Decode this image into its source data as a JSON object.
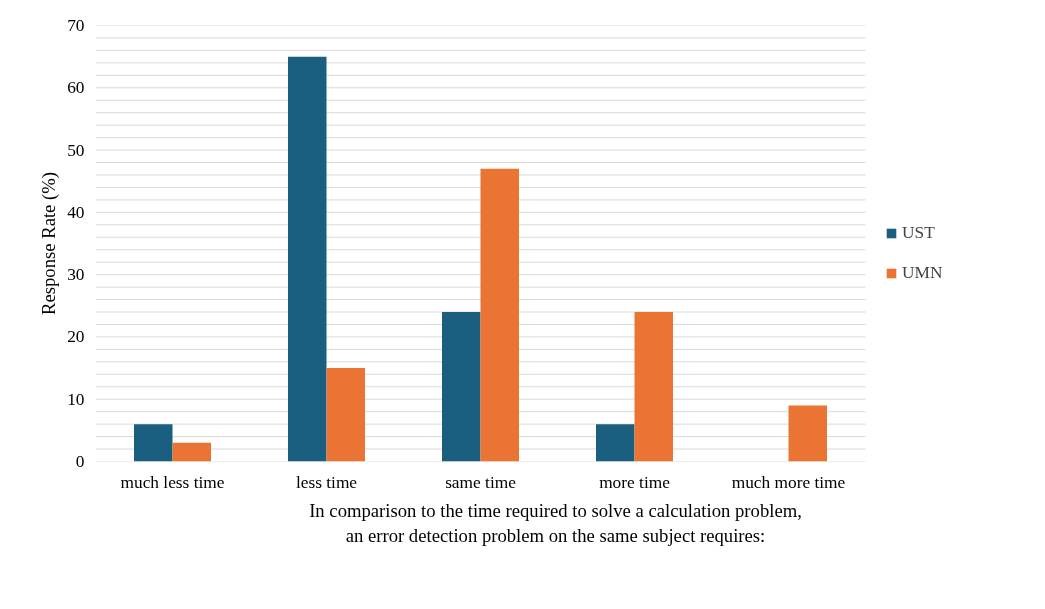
{
  "chart_data": {
    "type": "bar",
    "xlabel": "In comparison to the time required to solve a calculation problem, an error detection problem on the same subject requires:",
    "ylabel": "Response Rate (%)",
    "categories": [
      "much less time",
      "less time",
      "same time",
      "more time",
      "much more time"
    ],
    "series": [
      {
        "name": "UST",
        "color": "#1a5f80",
        "values": [
          6,
          65,
          24,
          6,
          0
        ]
      },
      {
        "name": "UMN",
        "color": "#ea7434",
        "values": [
          3,
          15,
          47,
          24,
          9
        ]
      }
    ],
    "ylim": [
      0,
      70
    ],
    "yticks": [
      0,
      {
        "value": 2,
        "label": null
      },
      {
        "value": 4,
        "label": null
      },
      {
        "value": 6,
        "label": null
      },
      {
        "value": 8,
        "label": null
      },
      10,
      {
        "value": 12,
        "label": null
      },
      {
        "value": 14,
        "label": null
      },
      {
        "value": 16,
        "label": null
      },
      {
        "value": 18,
        "label": null
      },
      20,
      {
        "value": 22,
        "label": null
      },
      {
        "value": 24,
        "label": null
      },
      {
        "value": 26,
        "label": null
      },
      {
        "value": 28,
        "label": null
      },
      30,
      {
        "value": 32,
        "label": null
      },
      {
        "value": 34,
        "label": null
      },
      {
        "value": 36,
        "label": null
      },
      {
        "value": 38,
        "label": null
      },
      40,
      {
        "value": 42,
        "label": null
      },
      {
        "value": 44,
        "label": null
      },
      {
        "value": 46,
        "label": null
      },
      {
        "value": 48,
        "label": null
      },
      50,
      {
        "value": 52,
        "label": null
      },
      {
        "value": 54,
        "label": null
      },
      {
        "value": 56,
        "label": null
      },
      {
        "value": 58,
        "label": null
      },
      60,
      {
        "value": 62,
        "label": null
      },
      {
        "value": 64,
        "label": null
      },
      {
        "value": 66,
        "label": null
      },
      {
        "value": 68,
        "label": null
      },
      70
    ],
    "grid": "y",
    "legend": "right"
  }
}
